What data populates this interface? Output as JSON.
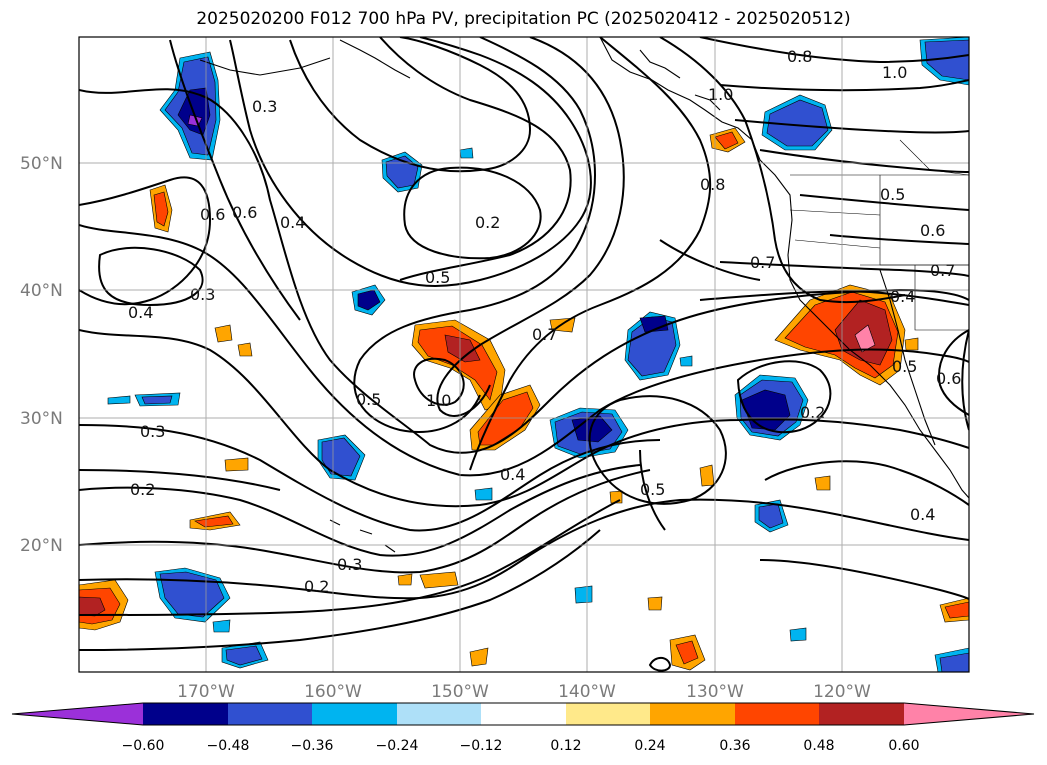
{
  "title": "2025020200 F012 700 hPa PV, precipitation PC (2025020412 - 2025020512)",
  "lat_labels": [
    "50°N",
    "40°N",
    "30°N",
    "20°N"
  ],
  "lon_labels": [
    "170°W",
    "160°W",
    "150°W",
    "140°W",
    "130°W",
    "120°W"
  ],
  "colorbar": {
    "ticks": [
      "−0.60",
      "−0.48",
      "−0.36",
      "−0.24",
      "−0.12",
      "0.12",
      "0.24",
      "0.36",
      "0.48",
      "0.60"
    ],
    "colors": [
      "#9b30d9",
      "#00008b",
      "#3050d0",
      "#00b4f0",
      "#aee0f8",
      "#ffffff",
      "#ffe98a",
      "#ffa500",
      "#ff4500",
      "#b22222",
      "#ff82a8"
    ]
  },
  "contour_labels": [
    {
      "text": "0.3"
    },
    {
      "text": "0.6"
    },
    {
      "text": "0.6"
    },
    {
      "text": "0.4"
    },
    {
      "text": "0.3"
    },
    {
      "text": "0.4"
    },
    {
      "text": "0.2"
    },
    {
      "text": "0.5"
    },
    {
      "text": "0.7"
    },
    {
      "text": "1.0"
    },
    {
      "text": "0.5"
    },
    {
      "text": "0.3"
    },
    {
      "text": "0.2"
    },
    {
      "text": "0.4"
    },
    {
      "text": "0.3"
    },
    {
      "text": "0.2"
    },
    {
      "text": "0.5"
    },
    {
      "text": "0.8"
    },
    {
      "text": "1.0"
    },
    {
      "text": "0.8"
    },
    {
      "text": "1.0"
    },
    {
      "text": "0.5"
    },
    {
      "text": "0.6"
    },
    {
      "text": "0.7"
    },
    {
      "text": "0.7"
    },
    {
      "text": "0.4"
    },
    {
      "text": "0.5"
    },
    {
      "text": "0.6"
    },
    {
      "text": "0.2"
    },
    {
      "text": "0.4"
    }
  ]
}
